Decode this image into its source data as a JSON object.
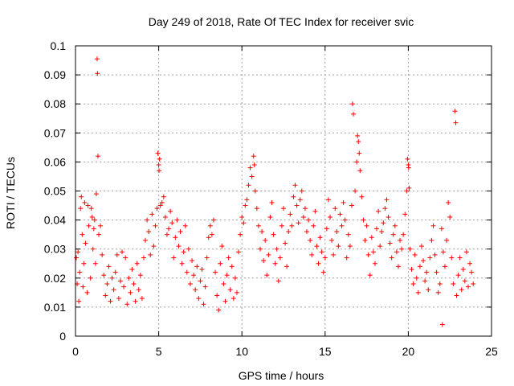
{
  "chart_data": {
    "type": "scatter",
    "title": "Day 249 of 2018, Rate Of TEC Index for receiver svic",
    "xlabel": "GPS time / hours",
    "ylabel": "ROTI / TECUs",
    "xlim": [
      0,
      25
    ],
    "ylim": [
      0,
      0.1
    ],
    "xticks": [
      0,
      5,
      10,
      15,
      20,
      25
    ],
    "xtick_labels": [
      "0",
      "5",
      "10",
      "15",
      "20",
      "25"
    ],
    "yticks": [
      0,
      0.01,
      0.02,
      0.03,
      0.04,
      0.05,
      0.06,
      0.07,
      0.08,
      0.09,
      0.1
    ],
    "ytick_labels": [
      "0",
      "0.01",
      "0.02",
      "0.03",
      "0.04",
      "0.05",
      "0.06",
      "0.07",
      "0.08",
      "0.09",
      "0.1"
    ],
    "grid": true,
    "marker": "+",
    "marker_color": "#ff0000",
    "series": [
      {
        "name": "ROTI",
        "points": [
          [
            0.05,
            0.027
          ],
          [
            0.1,
            0.018
          ],
          [
            0.15,
            0.029
          ],
          [
            0.2,
            0.012
          ],
          [
            0.25,
            0.022
          ],
          [
            0.3,
            0.044
          ],
          [
            0.35,
            0.048
          ],
          [
            0.4,
            0.035
          ],
          [
            0.45,
            0.017
          ],
          [
            0.5,
            0.025
          ],
          [
            0.55,
            0.046
          ],
          [
            0.6,
            0.032
          ],
          [
            0.7,
            0.015
          ],
          [
            0.75,
            0.045
          ],
          [
            0.8,
            0.038
          ],
          [
            0.9,
            0.02
          ],
          [
            0.95,
            0.044
          ],
          [
            1.0,
            0.041
          ],
          [
            1.05,
            0.03
          ],
          [
            1.1,
            0.037
          ],
          [
            1.15,
            0.04
          ],
          [
            1.2,
            0.025
          ],
          [
            1.25,
            0.049
          ],
          [
            1.3,
            0.0955
          ],
          [
            1.32,
            0.0905
          ],
          [
            1.35,
            0.062
          ],
          [
            1.4,
            0.035
          ],
          [
            1.5,
            0.038
          ],
          [
            1.6,
            0.028
          ],
          [
            1.7,
            0.021
          ],
          [
            1.8,
            0.014
          ],
          [
            1.9,
            0.018
          ],
          [
            2.0,
            0.024
          ],
          [
            2.1,
            0.012
          ],
          [
            2.2,
            0.02
          ],
          [
            2.3,
            0.016
          ],
          [
            2.4,
            0.022
          ],
          [
            2.5,
            0.028
          ],
          [
            2.6,
            0.013
          ],
          [
            2.7,
            0.019
          ],
          [
            2.8,
            0.029
          ],
          [
            2.9,
            0.017
          ],
          [
            3.0,
            0.027
          ],
          [
            3.1,
            0.011
          ],
          [
            3.2,
            0.02
          ],
          [
            3.3,
            0.015
          ],
          [
            3.4,
            0.023
          ],
          [
            3.5,
            0.018
          ],
          [
            3.6,
            0.012
          ],
          [
            3.7,
            0.025
          ],
          [
            3.8,
            0.016
          ],
          [
            3.9,
            0.021
          ],
          [
            4.0,
            0.013
          ],
          [
            4.1,
            0.027
          ],
          [
            4.2,
            0.033
          ],
          [
            4.3,
            0.04
          ],
          [
            4.4,
            0.036
          ],
          [
            4.5,
            0.028
          ],
          [
            4.6,
            0.042
          ],
          [
            4.7,
            0.031
          ],
          [
            4.8,
            0.038
          ],
          [
            4.9,
            0.044
          ],
          [
            4.95,
            0.063
          ],
          [
            5.0,
            0.059
          ],
          [
            5.02,
            0.057
          ],
          [
            5.05,
            0.061
          ],
          [
            5.1,
            0.045
          ],
          [
            5.2,
            0.046
          ],
          [
            5.3,
            0.048
          ],
          [
            5.4,
            0.041
          ],
          [
            5.5,
            0.035
          ],
          [
            5.6,
            0.037
          ],
          [
            5.7,
            0.043
          ],
          [
            5.8,
            0.039
          ],
          [
            5.9,
            0.027
          ],
          [
            6.0,
            0.034
          ],
          [
            6.1,
            0.04
          ],
          [
            6.2,
            0.031
          ],
          [
            6.3,
            0.036
          ],
          [
            6.4,
            0.025
          ],
          [
            6.5,
            0.029
          ],
          [
            6.6,
            0.038
          ],
          [
            6.7,
            0.022
          ],
          [
            6.8,
            0.03
          ],
          [
            6.9,
            0.018
          ],
          [
            7.0,
            0.026
          ],
          [
            7.1,
            0.021
          ],
          [
            7.2,
            0.016
          ],
          [
            7.3,
            0.024
          ],
          [
            7.4,
            0.013
          ],
          [
            7.5,
            0.019
          ],
          [
            7.6,
            0.023
          ],
          [
            7.7,
            0.011
          ],
          [
            7.8,
            0.017
          ],
          [
            7.9,
            0.027
          ],
          [
            8.0,
            0.034
          ],
          [
            8.1,
            0.038
          ],
          [
            8.2,
            0.035
          ],
          [
            8.3,
            0.04
          ],
          [
            8.4,
            0.022
          ],
          [
            8.5,
            0.014
          ],
          [
            8.6,
            0.009
          ],
          [
            8.7,
            0.025
          ],
          [
            8.8,
            0.031
          ],
          [
            8.9,
            0.018
          ],
          [
            9.0,
            0.012
          ],
          [
            9.1,
            0.021
          ],
          [
            9.2,
            0.027
          ],
          [
            9.3,
            0.016
          ],
          [
            9.4,
            0.024
          ],
          [
            9.5,
            0.013
          ],
          [
            9.6,
            0.02
          ],
          [
            9.7,
            0.015
          ],
          [
            9.8,
            0.029
          ],
          [
            9.9,
            0.035
          ],
          [
            10.0,
            0.041
          ],
          [
            10.1,
            0.039
          ],
          [
            10.2,
            0.045
          ],
          [
            10.3,
            0.047
          ],
          [
            10.4,
            0.052
          ],
          [
            10.5,
            0.058
          ],
          [
            10.6,
            0.055
          ],
          [
            10.7,
            0.062
          ],
          [
            10.75,
            0.059
          ],
          [
            10.8,
            0.05
          ],
          [
            10.9,
            0.044
          ],
          [
            11.0,
            0.038
          ],
          [
            11.1,
            0.03
          ],
          [
            11.2,
            0.036
          ],
          [
            11.3,
            0.026
          ],
          [
            11.4,
            0.033
          ],
          [
            11.5,
            0.021
          ],
          [
            11.6,
            0.028
          ],
          [
            11.7,
            0.041
          ],
          [
            11.8,
            0.046
          ],
          [
            11.9,
            0.035
          ],
          [
            12.0,
            0.025
          ],
          [
            12.1,
            0.03
          ],
          [
            12.2,
            0.019
          ],
          [
            12.3,
            0.027
          ],
          [
            12.4,
            0.038
          ],
          [
            12.5,
            0.044
          ],
          [
            12.6,
            0.032
          ],
          [
            12.7,
            0.024
          ],
          [
            12.8,
            0.036
          ],
          [
            12.9,
            0.042
          ],
          [
            13.0,
            0.038
          ],
          [
            13.1,
            0.048
          ],
          [
            13.2,
            0.052
          ],
          [
            13.3,
            0.045
          ],
          [
            13.4,
            0.039
          ],
          [
            13.5,
            0.047
          ],
          [
            13.6,
            0.05
          ],
          [
            13.7,
            0.041
          ],
          [
            13.8,
            0.044
          ],
          [
            13.9,
            0.036
          ],
          [
            14.0,
            0.04
          ],
          [
            14.1,
            0.033
          ],
          [
            14.2,
            0.028
          ],
          [
            14.3,
            0.038
          ],
          [
            14.4,
            0.043
          ],
          [
            14.5,
            0.031
          ],
          [
            14.6,
            0.025
          ],
          [
            14.7,
            0.034
          ],
          [
            14.8,
            0.029
          ],
          [
            14.9,
            0.022
          ],
          [
            15.0,
            0.027
          ],
          [
            15.1,
            0.037
          ],
          [
            15.2,
            0.047
          ],
          [
            15.3,
            0.041
          ],
          [
            15.4,
            0.033
          ],
          [
            15.5,
            0.028
          ],
          [
            15.6,
            0.044
          ],
          [
            15.7,
            0.036
          ],
          [
            15.8,
            0.031
          ],
          [
            15.9,
            0.042
          ],
          [
            16.0,
            0.038
          ],
          [
            16.1,
            0.046
          ],
          [
            16.2,
            0.04
          ],
          [
            16.3,
            0.027
          ],
          [
            16.4,
            0.035
          ],
          [
            16.5,
            0.031
          ],
          [
            16.6,
            0.045
          ],
          [
            16.65,
            0.08
          ],
          [
            16.7,
            0.0765
          ],
          [
            16.8,
            0.05
          ],
          [
            16.9,
            0.06
          ],
          [
            16.95,
            0.069
          ],
          [
            17.0,
            0.067
          ],
          [
            17.05,
            0.063
          ],
          [
            17.1,
            0.057
          ],
          [
            17.2,
            0.048
          ],
          [
            17.3,
            0.04
          ],
          [
            17.4,
            0.033
          ],
          [
            17.5,
            0.038
          ],
          [
            17.6,
            0.028
          ],
          [
            17.7,
            0.021
          ],
          [
            17.8,
            0.034
          ],
          [
            17.9,
            0.029
          ],
          [
            18.0,
            0.025
          ],
          [
            18.1,
            0.037
          ],
          [
            18.2,
            0.043
          ],
          [
            18.3,
            0.031
          ],
          [
            18.4,
            0.036
          ],
          [
            18.5,
            0.039
          ],
          [
            18.6,
            0.044
          ],
          [
            18.7,
            0.047
          ],
          [
            18.8,
            0.041
          ],
          [
            18.9,
            0.032
          ],
          [
            19.0,
            0.027
          ],
          [
            19.1,
            0.035
          ],
          [
            19.2,
            0.038
          ],
          [
            19.3,
            0.029
          ],
          [
            19.4,
            0.024
          ],
          [
            19.5,
            0.033
          ],
          [
            19.6,
            0.03
          ],
          [
            19.7,
            0.035
          ],
          [
            19.8,
            0.042
          ],
          [
            19.9,
            0.05
          ],
          [
            19.95,
            0.061
          ],
          [
            20.0,
            0.059
          ],
          [
            20.02,
            0.058
          ],
          [
            20.05,
            0.051
          ],
          [
            20.1,
            0.03
          ],
          [
            20.2,
            0.023
          ],
          [
            20.3,
            0.018
          ],
          [
            20.4,
            0.028
          ],
          [
            20.5,
            0.02
          ],
          [
            20.6,
            0.015
          ],
          [
            20.7,
            0.024
          ],
          [
            20.8,
            0.031
          ],
          [
            20.9,
            0.026
          ],
          [
            21.0,
            0.019
          ],
          [
            21.1,
            0.022
          ],
          [
            21.2,
            0.016
          ],
          [
            21.3,
            0.027
          ],
          [
            21.4,
            0.033
          ],
          [
            21.5,
            0.038
          ],
          [
            21.6,
            0.028
          ],
          [
            21.7,
            0.022
          ],
          [
            21.8,
            0.015
          ],
          [
            21.9,
            0.018
          ],
          [
            22.0,
            0.037
          ],
          [
            22.05,
            0.004
          ],
          [
            22.1,
            0.029
          ],
          [
            22.2,
            0.024
          ],
          [
            22.3,
            0.033
          ],
          [
            22.4,
            0.046
          ],
          [
            22.5,
            0.041
          ],
          [
            22.6,
            0.027
          ],
          [
            22.7,
            0.018
          ],
          [
            22.8,
            0.0775
          ],
          [
            22.85,
            0.0735
          ],
          [
            22.9,
            0.014
          ],
          [
            23.0,
            0.021
          ],
          [
            23.1,
            0.027
          ],
          [
            23.2,
            0.016
          ],
          [
            23.3,
            0.023
          ],
          [
            23.4,
            0.019
          ],
          [
            23.5,
            0.029
          ],
          [
            23.6,
            0.017
          ],
          [
            23.7,
            0.025
          ],
          [
            23.8,
            0.022
          ],
          [
            23.9,
            0.018
          ]
        ]
      }
    ]
  }
}
